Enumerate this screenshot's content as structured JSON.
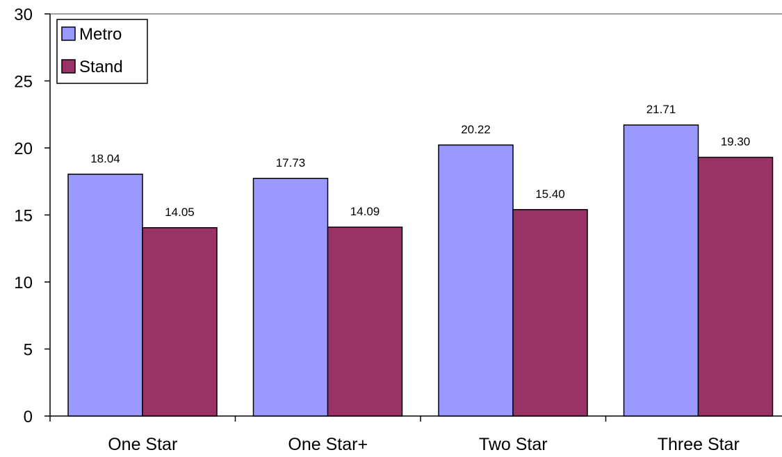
{
  "chart_data": {
    "type": "bar",
    "categories": [
      "One Star",
      "One Star+",
      "Two Star",
      "Three Star"
    ],
    "series": [
      {
        "name": "Metro",
        "values": [
          18.04,
          17.73,
          20.22,
          21.71
        ],
        "color": "#9999FF"
      },
      {
        "name": "Stand",
        "values": [
          14.05,
          14.09,
          15.4,
          19.3
        ],
        "color": "#993366"
      }
    ],
    "data_labels": [
      [
        "18.04",
        "17.73",
        "20.22",
        "21.71"
      ],
      [
        "14.05",
        "14.09",
        "15.40",
        "19.30"
      ]
    ],
    "y_ticks": [
      "0",
      "5",
      "10",
      "15",
      "20",
      "25",
      "30"
    ],
    "ylim": [
      0,
      30
    ],
    "y_step": 5,
    "title": "",
    "xlabel": "",
    "ylabel": "",
    "grid": false,
    "legend_position": "top-left"
  }
}
